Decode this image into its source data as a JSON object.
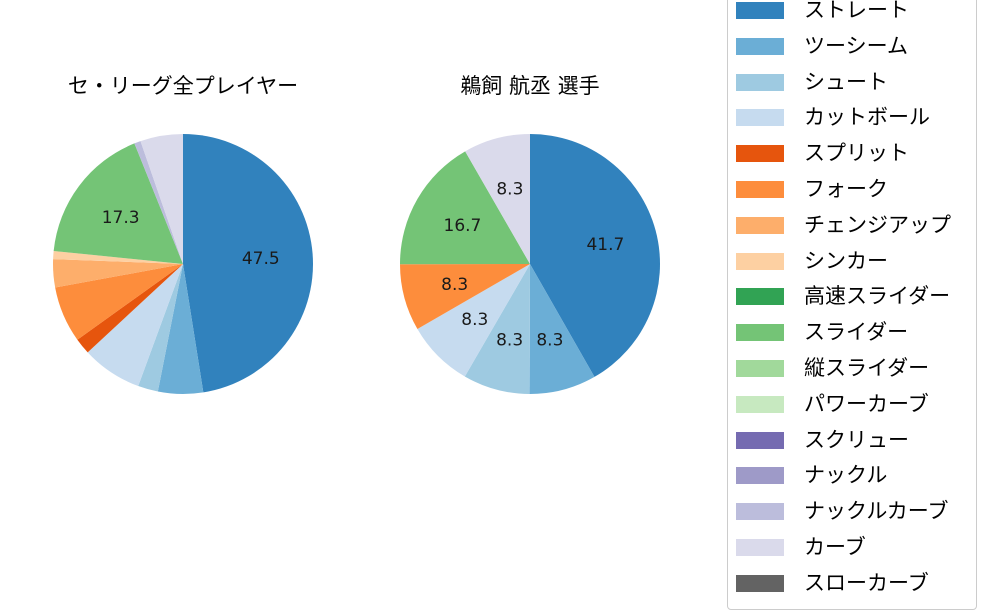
{
  "chart_data": [
    {
      "type": "pie",
      "title": "セ・リーグ全プレイヤー",
      "start_angle": 90,
      "direction": "clockwise",
      "categories": [
        "ストレート",
        "ツーシーム",
        "シュート",
        "カットボール",
        "スプリット",
        "フォーク",
        "チェンジアップ",
        "シンカー",
        "スライダー",
        "ナックルカーブ",
        "カーブ"
      ],
      "values": [
        47.5,
        5.6,
        2.5,
        7.5,
        2.0,
        7.0,
        3.5,
        1.0,
        17.3,
        0.8,
        5.3
      ],
      "labels_shown": {
        "ストレート": "47.5",
        "スライダー": "17.3"
      },
      "colors": [
        "#3182bd",
        "#6baed6",
        "#9ecae1",
        "#c6dbef",
        "#e6550d",
        "#fd8d3c",
        "#fdae6b",
        "#fdd0a2",
        "#74c476",
        "#bcbddc",
        "#dadaeb"
      ]
    },
    {
      "type": "pie",
      "title": "鵜飼 航丞  選手",
      "start_angle": 90,
      "direction": "clockwise",
      "categories": [
        "ストレート",
        "ツーシーム",
        "シュート",
        "カットボール",
        "フォーク",
        "スライダー",
        "カーブ"
      ],
      "values": [
        41.7,
        8.3,
        8.3,
        8.3,
        8.3,
        16.7,
        8.3
      ],
      "labels_shown": {
        "ストレート": "41.7",
        "ツーシーム": "8.3",
        "シュート": "8.3",
        "カットボール": "8.3",
        "フォーク": "8.3",
        "スライダー": "16.7",
        "カーブ": "8.3"
      },
      "colors": [
        "#3182bd",
        "#6baed6",
        "#9ecae1",
        "#c6dbef",
        "#fd8d3c",
        "#74c476",
        "#dadaeb"
      ]
    }
  ],
  "titles": {
    "left": "セ・リーグ全プレイヤー",
    "right": "鵜飼 航丞  選手"
  },
  "legend": {
    "items": [
      {
        "label": "ストレート",
        "color": "#3182bd"
      },
      {
        "label": "ツーシーム",
        "color": "#6baed6"
      },
      {
        "label": "シュート",
        "color": "#9ecae1"
      },
      {
        "label": "カットボール",
        "color": "#c6dbef"
      },
      {
        "label": "スプリット",
        "color": "#e6550d"
      },
      {
        "label": "フォーク",
        "color": "#fd8d3c"
      },
      {
        "label": "チェンジアップ",
        "color": "#fdae6b"
      },
      {
        "label": "シンカー",
        "color": "#fdd0a2"
      },
      {
        "label": "高速スライダー",
        "color": "#31a354"
      },
      {
        "label": "スライダー",
        "color": "#74c476"
      },
      {
        "label": "縦スライダー",
        "color": "#a1d99b"
      },
      {
        "label": "パワーカーブ",
        "color": "#c7e9c0"
      },
      {
        "label": "スクリュー",
        "color": "#756bb1"
      },
      {
        "label": "ナックル",
        "color": "#9e9ac8"
      },
      {
        "label": "ナックルカーブ",
        "color": "#bcbddc"
      },
      {
        "label": "カーブ",
        "color": "#dadaeb"
      },
      {
        "label": "スローカーブ",
        "color": "#636363"
      }
    ]
  }
}
